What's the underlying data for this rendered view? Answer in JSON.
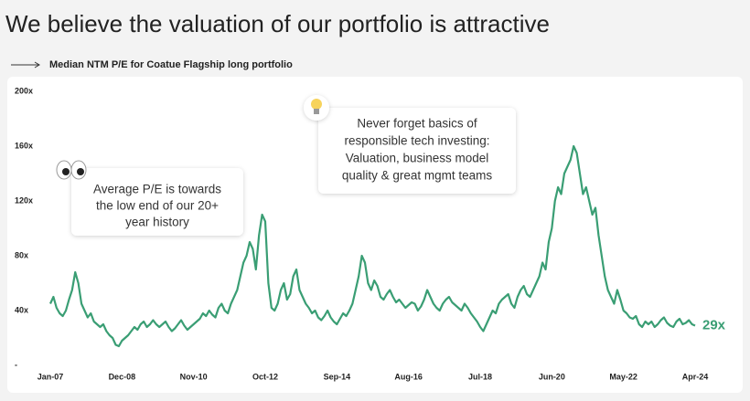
{
  "chart_data": {
    "type": "line",
    "title": "We believe the valuation of our portfolio is attractive",
    "subtitle": "Median NTM P/E for Coatue Flagship long portfolio",
    "categories": [
      "Jan-07",
      null,
      null,
      null,
      null,
      null,
      null,
      null,
      null,
      null,
      null,
      null,
      null,
      null,
      null,
      null,
      null,
      null,
      null,
      null,
      null,
      null,
      null,
      "Dec-08",
      null,
      null,
      null,
      null,
      null,
      null,
      null,
      null,
      null,
      null,
      null,
      null,
      null,
      null,
      null,
      null,
      null,
      null,
      null,
      null,
      null,
      null,
      "Nov-10",
      null,
      null,
      null,
      null,
      null,
      null,
      null,
      null,
      null,
      null,
      null,
      null,
      null,
      null,
      null,
      null,
      null,
      null,
      null,
      null,
      null,
      null,
      "Oct-12",
      null,
      null,
      null,
      null,
      null,
      null,
      null,
      null,
      null,
      null,
      null,
      null,
      null,
      null,
      null,
      null,
      null,
      null,
      null,
      null,
      null,
      null,
      "Sep-14",
      null,
      null,
      null,
      null,
      null,
      null,
      null,
      null,
      null,
      null,
      null,
      null,
      null,
      null,
      null,
      null,
      null,
      null,
      null,
      null,
      null,
      null,
      "Aug-16",
      null,
      null,
      null,
      null,
      null,
      null,
      null,
      null,
      null,
      null,
      null,
      null,
      null,
      null,
      null,
      null,
      null,
      null,
      null,
      null,
      null,
      null,
      "Jul-18",
      null,
      null,
      null,
      null,
      null,
      null,
      null,
      null,
      null,
      null,
      null,
      null,
      null,
      null,
      null,
      null,
      null,
      null,
      null,
      null,
      null,
      null,
      "Jun-20",
      null,
      null,
      null,
      null,
      null,
      null,
      null,
      null,
      null,
      null,
      null,
      null,
      null,
      null,
      null,
      null,
      null,
      null,
      null,
      null,
      null,
      null,
      "May-22",
      null,
      null,
      null,
      null,
      null,
      null,
      null,
      null,
      null,
      null,
      null,
      null,
      null,
      null,
      null,
      null,
      null,
      null,
      null,
      null,
      null,
      null,
      "Apr-24"
    ],
    "values": [
      45,
      50,
      42,
      38,
      36,
      40,
      48,
      55,
      68,
      60,
      45,
      40,
      35,
      38,
      32,
      30,
      28,
      30,
      25,
      22,
      20,
      15,
      14,
      18,
      20,
      22,
      25,
      28,
      26,
      30,
      32,
      28,
      30,
      33,
      30,
      28,
      30,
      32,
      28,
      25,
      27,
      30,
      33,
      29,
      26,
      28,
      30,
      32,
      34,
      38,
      36,
      40,
      37,
      35,
      42,
      45,
      40,
      38,
      45,
      50,
      55,
      65,
      75,
      80,
      90,
      85,
      70,
      95,
      110,
      105,
      60,
      42,
      40,
      45,
      55,
      60,
      48,
      52,
      65,
      70,
      55,
      50,
      45,
      42,
      38,
      40,
      35,
      33,
      36,
      40,
      35,
      32,
      30,
      34,
      38,
      36,
      40,
      45,
      55,
      65,
      80,
      75,
      60,
      55,
      62,
      58,
      50,
      48,
      52,
      55,
      50,
      46,
      48,
      45,
      42,
      44,
      46,
      45,
      40,
      43,
      48,
      55,
      50,
      45,
      42,
      40,
      45,
      48,
      50,
      46,
      44,
      42,
      40,
      45,
      42,
      38,
      35,
      32,
      28,
      25,
      30,
      35,
      40,
      38,
      45,
      48,
      50,
      52,
      45,
      42,
      50,
      55,
      58,
      52,
      50,
      55,
      60,
      65,
      75,
      70,
      90,
      100,
      120,
      130,
      125,
      140,
      145,
      150,
      160,
      155,
      140,
      125,
      130,
      120,
      110,
      115,
      95,
      80,
      65,
      55,
      50,
      45,
      55,
      48,
      40,
      38,
      35,
      34,
      36,
      30,
      28,
      32,
      30,
      32,
      28,
      30,
      33,
      35,
      31,
      29,
      28,
      32,
      34,
      30,
      31,
      33,
      30,
      29
    ],
    "last_value_label": "29x",
    "color": "#3a9e74",
    "ylim": [
      0,
      200
    ],
    "yticks": [
      {
        "value": 0,
        "label": "-"
      },
      {
        "value": 40,
        "label": "40x"
      },
      {
        "value": 80,
        "label": "80x"
      },
      {
        "value": 120,
        "label": "120x"
      },
      {
        "value": 160,
        "label": "160x"
      },
      {
        "value": 200,
        "label": "200x"
      }
    ],
    "annotations": [
      {
        "lines": [
          "Average P/E is towards",
          "the low end of our 20+",
          "year history"
        ]
      },
      {
        "lines": [
          "Never forget basics of",
          "responsible tech investing:",
          "Valuation, business model",
          "quality & great mgmt teams"
        ]
      }
    ]
  }
}
